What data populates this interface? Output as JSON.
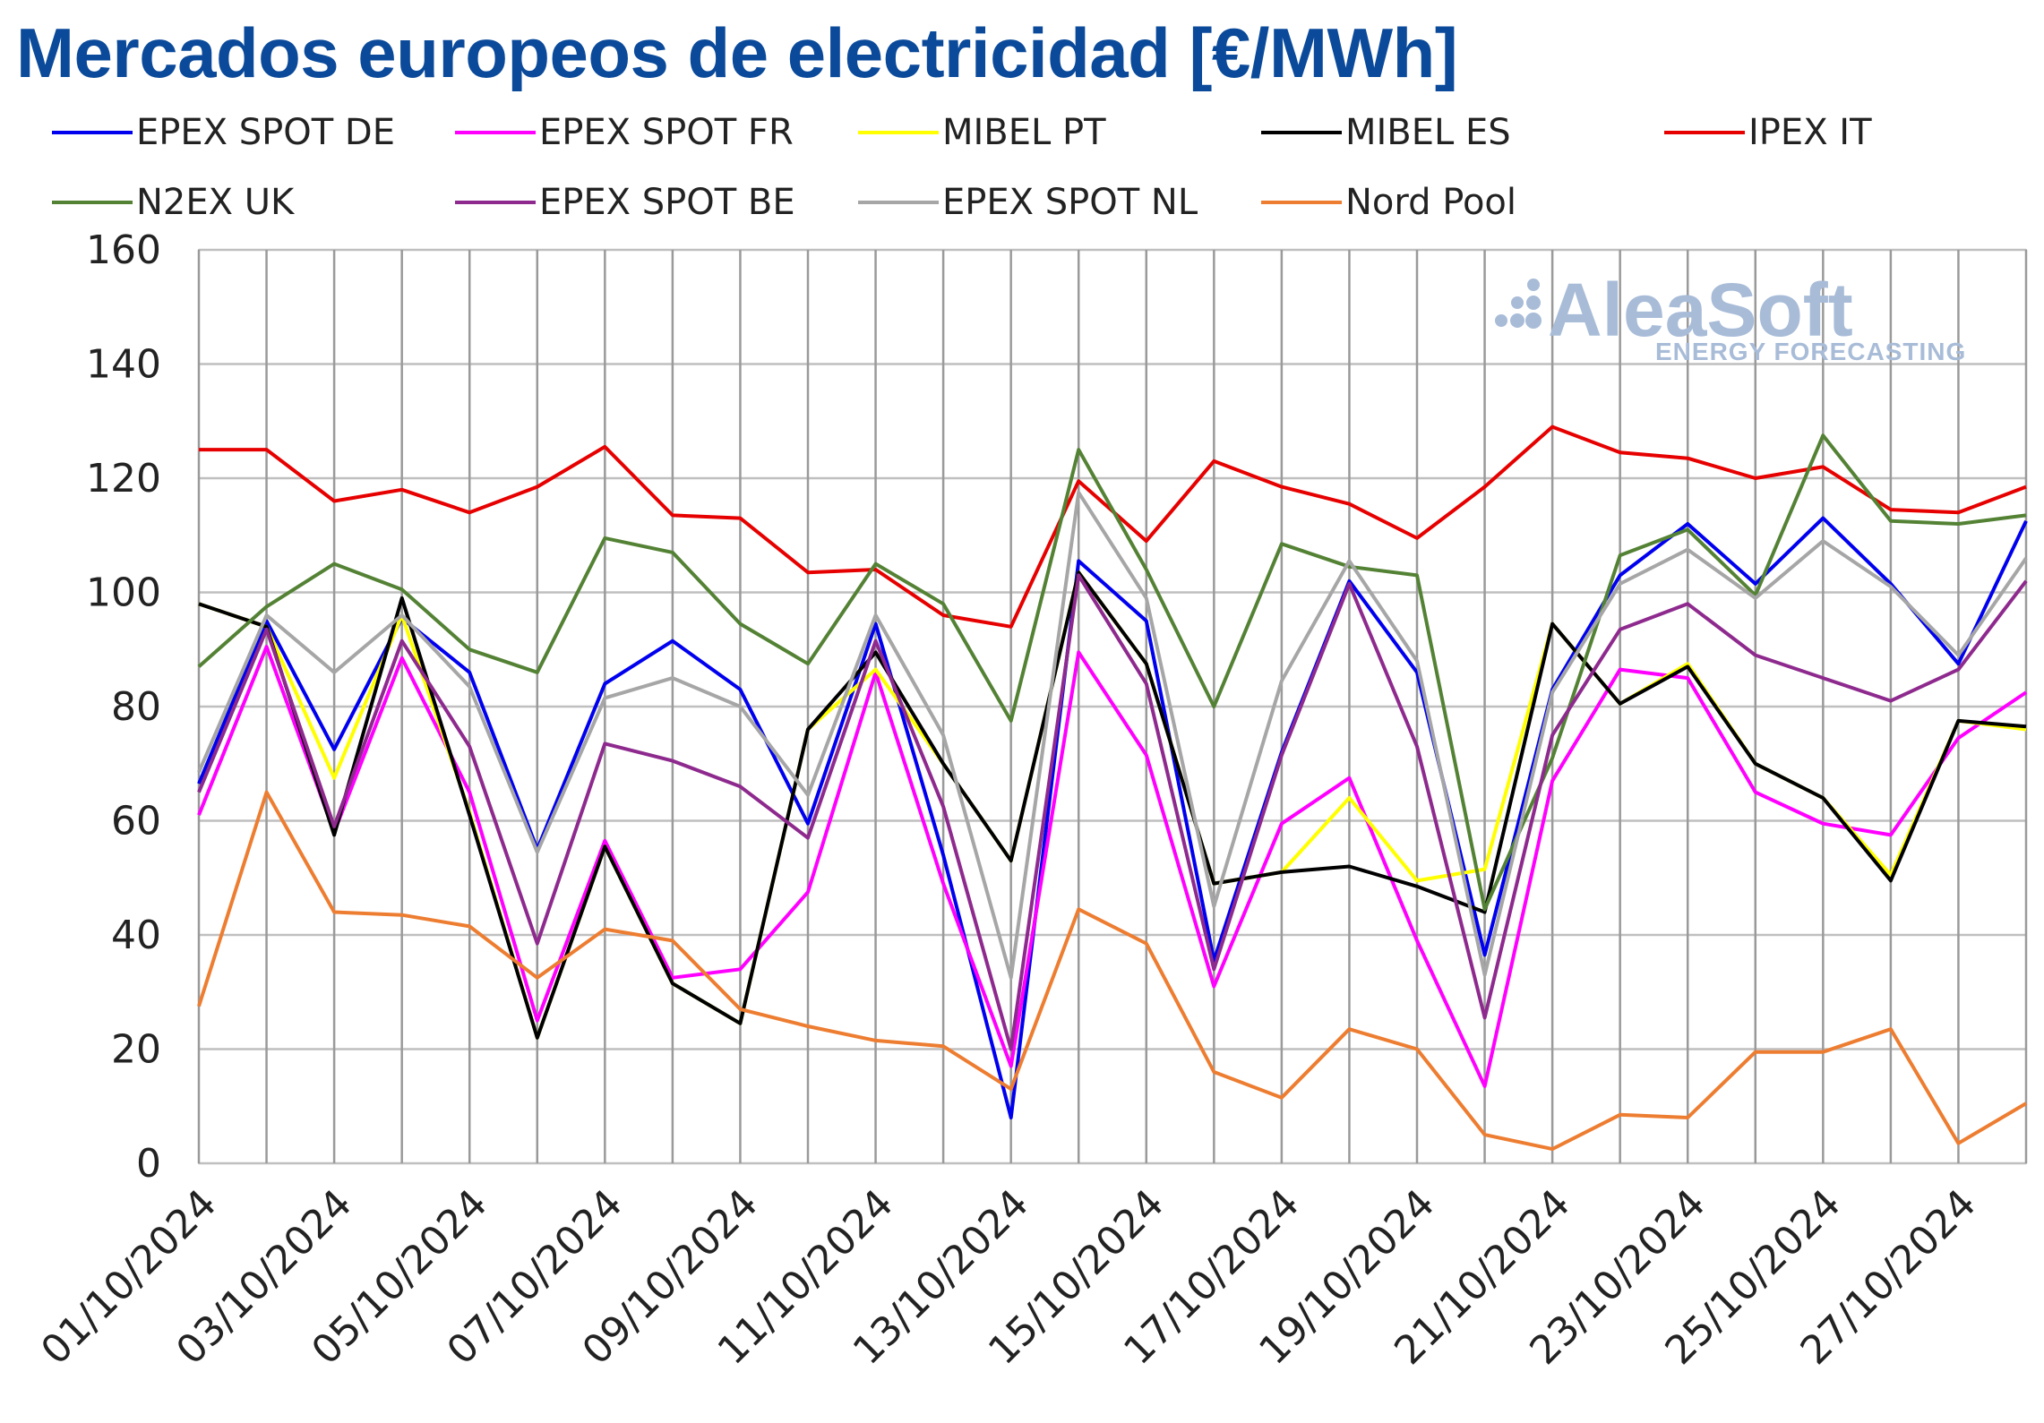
{
  "title": "Mercados europeos de electricidad [€/MWh]",
  "watermark": {
    "brand": "AleaSoft",
    "tagline": "ENERGY FORECASTING"
  },
  "chart_data": {
    "type": "line",
    "title": "Mercados europeos de electricidad [€/MWh]",
    "ylim": [
      0,
      160
    ],
    "yticks": [
      "0",
      "20",
      "40",
      "60",
      "80",
      "100",
      "120",
      "140",
      "160"
    ],
    "grid": true,
    "legend_position": "top",
    "x": [
      "01/10/2024",
      "02/10/2024",
      "03/10/2024",
      "04/10/2024",
      "05/10/2024",
      "06/10/2024",
      "07/10/2024",
      "08/10/2024",
      "09/10/2024",
      "10/10/2024",
      "11/10/2024",
      "12/10/2024",
      "13/10/2024",
      "14/10/2024",
      "15/10/2024",
      "16/10/2024",
      "17/10/2024",
      "18/10/2024",
      "19/10/2024",
      "20/10/2024",
      "21/10/2024",
      "22/10/2024",
      "23/10/2024",
      "24/10/2024",
      "25/10/2024",
      "26/10/2024",
      "27/10/2024",
      "28/10/2024"
    ],
    "xtick_labels": [
      "01/10/2024",
      "03/10/2024",
      "05/10/2024",
      "07/10/2024",
      "09/10/2024",
      "11/10/2024",
      "13/10/2024",
      "15/10/2024",
      "17/10/2024",
      "19/10/2024",
      "21/10/2024",
      "23/10/2024",
      "25/10/2024",
      "27/10/2024"
    ],
    "series": [
      {
        "name": "EPEX SPOT DE",
        "color": "#0000ee",
        "values": [
          66.5,
          95.0,
          72.5,
          95.5,
          86.0,
          55.0,
          84.0,
          91.5,
          83.0,
          59.5,
          94.5,
          54.0,
          8.0,
          105.5,
          95.0,
          35.5,
          72.0,
          102.0,
          86.0,
          36.5,
          83.0,
          103.0,
          112.0,
          101.5,
          113.0,
          101.5,
          87.5,
          112.5
        ]
      },
      {
        "name": "EPEX SPOT FR",
        "color": "#ff00ff",
        "values": [
          61.0,
          90.5,
          58.0,
          88.5,
          65.0,
          25.0,
          56.5,
          32.5,
          34.0,
          47.5,
          86.0,
          49.0,
          17.0,
          89.5,
          71.5,
          31.0,
          59.5,
          67.5,
          39.0,
          13.5,
          67.0,
          86.5,
          85.0,
          65.0,
          59.5,
          57.5,
          74.5,
          82.5
        ]
      },
      {
        "name": "MIBEL PT",
        "color": "#ffff00",
        "values": [
          98.0,
          94.0,
          67.5,
          96.0,
          61.5,
          22.0,
          55.5,
          31.5,
          24.5,
          76.0,
          86.5,
          70.0,
          53.0,
          103.5,
          87.5,
          49.0,
          51.0,
          64.0,
          49.5,
          51.5,
          94.5,
          80.5,
          87.5,
          70.0,
          64.0,
          50.5,
          77.5,
          76.0
        ]
      },
      {
        "name": "MIBEL ES",
        "color": "#000000",
        "values": [
          98.0,
          94.0,
          57.5,
          99.0,
          61.0,
          22.0,
          55.5,
          31.5,
          24.5,
          76.0,
          89.5,
          70.0,
          53.0,
          103.5,
          87.5,
          49.0,
          51.0,
          52.0,
          48.5,
          44.0,
          94.5,
          80.5,
          87.0,
          70.0,
          64.0,
          49.5,
          77.5,
          76.5
        ]
      },
      {
        "name": "IPEX IT",
        "color": "#e60000",
        "values": [
          125.0,
          125.0,
          116.0,
          118.0,
          114.0,
          118.5,
          125.5,
          113.5,
          113.0,
          103.5,
          104.0,
          96.0,
          94.0,
          119.5,
          109.0,
          123.0,
          118.5,
          115.5,
          109.5,
          118.5,
          129.0,
          124.5,
          123.5,
          120.0,
          122.0,
          114.5,
          114.0,
          118.5
        ]
      },
      {
        "name": "N2EX UK",
        "color": "#548235",
        "values": [
          87.0,
          97.5,
          105.0,
          100.5,
          90.0,
          86.0,
          109.5,
          107.0,
          94.5,
          87.5,
          105.0,
          98.0,
          77.5,
          125.0,
          104.0,
          80.0,
          108.5,
          104.5,
          103.0,
          44.5,
          71.0,
          106.5,
          111.0,
          99.5,
          127.5,
          112.5,
          112.0,
          113.5
        ]
      },
      {
        "name": "EPEX SPOT BE",
        "color": "#8e2a8e",
        "values": [
          65.0,
          93.5,
          59.0,
          91.5,
          73.0,
          38.5,
          73.5,
          70.5,
          66.0,
          57.0,
          91.5,
          62.5,
          20.0,
          103.0,
          84.0,
          34.0,
          71.5,
          101.5,
          73.0,
          25.5,
          75.0,
          93.5,
          98.0,
          89.0,
          85.0,
          81.0,
          86.5,
          102.0
        ]
      },
      {
        "name": "EPEX SPOT NL",
        "color": "#a6a6a6",
        "values": [
          68.5,
          96.0,
          86.0,
          96.0,
          83.5,
          54.5,
          81.5,
          85.0,
          80.0,
          64.5,
          96.0,
          75.0,
          32.5,
          117.5,
          99.0,
          45.0,
          84.5,
          105.5,
          88.0,
          33.0,
          82.5,
          101.5,
          107.5,
          99.0,
          109.0,
          101.0,
          89.0,
          106.0
        ]
      },
      {
        "name": "Nord Pool",
        "color": "#ed7d31",
        "values": [
          27.5,
          65.0,
          44.0,
          43.5,
          41.5,
          32.5,
          41.0,
          39.0,
          27.0,
          24.0,
          21.5,
          20.5,
          13.0,
          44.5,
          38.5,
          16.0,
          11.5,
          23.5,
          20.0,
          5.0,
          2.5,
          8.5,
          8.0,
          19.5,
          19.5,
          23.5,
          3.5,
          10.5
        ]
      }
    ]
  }
}
